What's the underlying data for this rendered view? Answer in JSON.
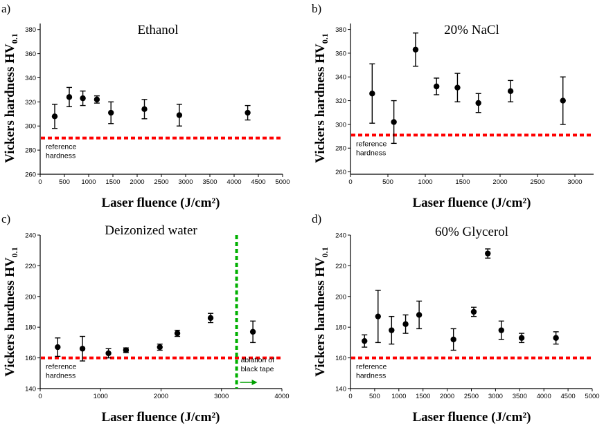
{
  "chart_data": [
    {
      "type": "scatter",
      "panel_label": "a)",
      "title": "Ethanol",
      "xlabel": "Laser fluence (J/cm²)",
      "ylabel_main": "Vickers hardness HV",
      "ylabel_sub": "0.1",
      "xlim": [
        0,
        5000
      ],
      "ylim": [
        260,
        385
      ],
      "xticks": [
        0,
        500,
        1000,
        1500,
        2000,
        2500,
        3000,
        3500,
        4000,
        4500,
        5000
      ],
      "yticks": [
        260,
        280,
        300,
        320,
        340,
        360,
        380
      ],
      "reference_value": 290,
      "reference_label": [
        "reference",
        "hardness"
      ],
      "points": [
        {
          "x": 300,
          "y": 308,
          "err": 10
        },
        {
          "x": 600,
          "y": 324,
          "err": 8
        },
        {
          "x": 880,
          "y": 323,
          "err": 6
        },
        {
          "x": 1170,
          "y": 322,
          "err": 3
        },
        {
          "x": 1460,
          "y": 311,
          "err": 9
        },
        {
          "x": 2150,
          "y": 314,
          "err": 8
        },
        {
          "x": 2870,
          "y": 309,
          "err": 9
        },
        {
          "x": 4280,
          "y": 311,
          "err": 6
        }
      ]
    },
    {
      "type": "scatter",
      "panel_label": "b)",
      "title": "20% NaCl",
      "xlabel": "Laser fluence (J/cm²)",
      "ylabel_main": "Vickers hardness HV",
      "ylabel_sub": "0.1",
      "xlim": [
        0,
        3250
      ],
      "ylim": [
        258,
        385
      ],
      "xticks": [
        0,
        500,
        1000,
        1500,
        2000,
        2500,
        3000
      ],
      "yticks": [
        260,
        280,
        300,
        320,
        340,
        360,
        380
      ],
      "reference_value": 291,
      "reference_label": [
        "reference",
        "hardness"
      ],
      "points": [
        {
          "x": 290,
          "y": 326,
          "err": 25
        },
        {
          "x": 580,
          "y": 302,
          "err": 18
        },
        {
          "x": 870,
          "y": 363,
          "err": 14
        },
        {
          "x": 1150,
          "y": 332,
          "err": 7
        },
        {
          "x": 1430,
          "y": 331,
          "err": 12
        },
        {
          "x": 1710,
          "y": 318,
          "err": 8
        },
        {
          "x": 2140,
          "y": 328,
          "err": 9
        },
        {
          "x": 2840,
          "y": 320,
          "err": 20
        }
      ]
    },
    {
      "type": "scatter",
      "panel_label": "c)",
      "title": "Deizonized water",
      "xlabel": "Laser fluence (J/cm²)",
      "ylabel_main": "Vickers hardness HV",
      "ylabel_sub": "0.1",
      "xlim": [
        0,
        4000
      ],
      "ylim": [
        140,
        240
      ],
      "xticks": [
        0,
        1000,
        2000,
        3000,
        4000
      ],
      "yticks": [
        140,
        160,
        180,
        200,
        220,
        240
      ],
      "reference_value": 160,
      "reference_label": [
        "reference",
        "hardness"
      ],
      "vertical_marker": 3250,
      "vertical_label": [
        "ablation of",
        "black tape"
      ],
      "points": [
        {
          "x": 290,
          "y": 167,
          "err": 6
        },
        {
          "x": 700,
          "y": 166,
          "err": 8
        },
        {
          "x": 1130,
          "y": 163,
          "err": 3
        },
        {
          "x": 1420,
          "y": 165,
          "err": 1.5
        },
        {
          "x": 1980,
          "y": 167,
          "err": 2
        },
        {
          "x": 2270,
          "y": 176,
          "err": 2
        },
        {
          "x": 2820,
          "y": 186,
          "err": 3
        },
        {
          "x": 3520,
          "y": 177,
          "err": 7
        }
      ]
    },
    {
      "type": "scatter",
      "panel_label": "d)",
      "title": "60% Glycerol",
      "xlabel": "Laser fluence (J/cm²)",
      "ylabel_main": "Vickers hardness HV",
      "ylabel_sub": "0.1",
      "xlim": [
        0,
        5000
      ],
      "ylim": [
        140,
        240
      ],
      "xticks": [
        0,
        500,
        1000,
        1500,
        2000,
        2500,
        3000,
        3500,
        4000,
        4500,
        5000
      ],
      "yticks": [
        140,
        160,
        180,
        200,
        220,
        240
      ],
      "reference_value": 160,
      "reference_label": [
        "reference",
        "hardness"
      ],
      "points": [
        {
          "x": 290,
          "y": 171,
          "err": 4
        },
        {
          "x": 570,
          "y": 187,
          "err": 17
        },
        {
          "x": 850,
          "y": 178,
          "err": 9
        },
        {
          "x": 1140,
          "y": 182,
          "err": 6
        },
        {
          "x": 1420,
          "y": 188,
          "err": 9
        },
        {
          "x": 2130,
          "y": 172,
          "err": 7
        },
        {
          "x": 2550,
          "y": 190,
          "err": 3
        },
        {
          "x": 2840,
          "y": 228,
          "err": 3
        },
        {
          "x": 3120,
          "y": 178,
          "err": 6
        },
        {
          "x": 3540,
          "y": 173,
          "err": 3
        },
        {
          "x": 4250,
          "y": 173,
          "err": 4
        }
      ]
    }
  ]
}
